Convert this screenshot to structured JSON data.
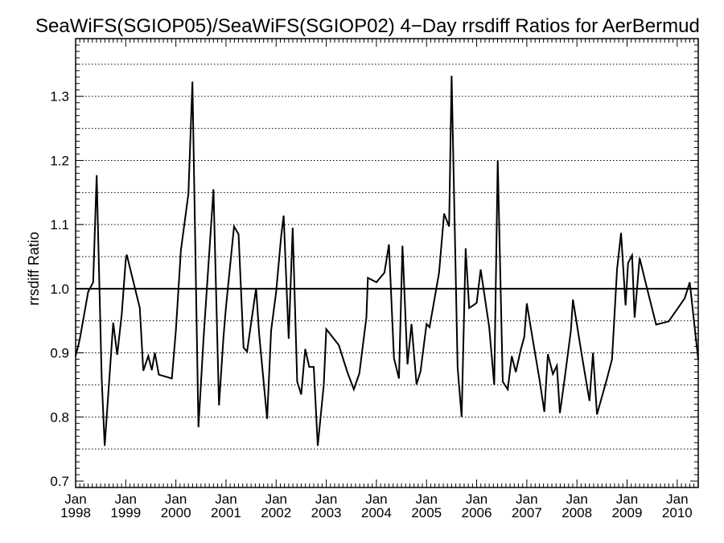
{
  "chart_data": {
    "type": "line",
    "title": "SeaWiFS(SGIOP05)/SeaWiFS(SGIOP02) 4−Day rrsdiff Ratios for AerBermud",
    "xlabel": "",
    "ylabel": "rrsdiff Ratio",
    "xlim": [
      1998.0,
      2010.42
    ],
    "ylim": [
      0.69,
      1.39
    ],
    "grid": true,
    "reference_line": 1.0,
    "x_ticks": [
      {
        "value": 1998,
        "line1": "Jan",
        "line2": "1998"
      },
      {
        "value": 1999,
        "line1": "Jan",
        "line2": "1999"
      },
      {
        "value": 2000,
        "line1": "Jan",
        "line2": "2000"
      },
      {
        "value": 2001,
        "line1": "Jan",
        "line2": "2001"
      },
      {
        "value": 2002,
        "line1": "Jan",
        "line2": "2002"
      },
      {
        "value": 2003,
        "line1": "Jan",
        "line2": "2003"
      },
      {
        "value": 2004,
        "line1": "Jan",
        "line2": "2004"
      },
      {
        "value": 2005,
        "line1": "Jan",
        "line2": "2005"
      },
      {
        "value": 2006,
        "line1": "Jan",
        "line2": "2006"
      },
      {
        "value": 2007,
        "line1": "Jan",
        "line2": "2007"
      },
      {
        "value": 2008,
        "line1": "Jan",
        "line2": "2008"
      },
      {
        "value": 2009,
        "line1": "Jan",
        "line2": "2009"
      },
      {
        "value": 2010,
        "line1": "Jan",
        "line2": "2010"
      }
    ],
    "y_ticks": [
      {
        "value": 0.7,
        "label": "0.7"
      },
      {
        "value": 0.8,
        "label": "0.8"
      },
      {
        "value": 0.9,
        "label": "0.9"
      },
      {
        "value": 1.0,
        "label": "1.0"
      },
      {
        "value": 1.1,
        "label": "1.1"
      },
      {
        "value": 1.2,
        "label": "1.2"
      },
      {
        "value": 1.3,
        "label": "1.3"
      }
    ],
    "gridlines_y": [
      0.75,
      0.8,
      0.85,
      0.9,
      0.95,
      1.0,
      1.05,
      1.1,
      1.15,
      1.2,
      1.25,
      1.3,
      1.35
    ],
    "series": [
      {
        "color": "#000000",
        "points": [
          [
            1998.0,
            0.895
          ],
          [
            1998.08,
            0.92
          ],
          [
            1998.25,
            0.995
          ],
          [
            1998.35,
            1.01
          ],
          [
            1998.42,
            1.177
          ],
          [
            1998.52,
            0.86
          ],
          [
            1998.58,
            0.755
          ],
          [
            1998.75,
            0.947
          ],
          [
            1998.83,
            0.897
          ],
          [
            1998.92,
            0.96
          ],
          [
            1999.0,
            1.045
          ],
          [
            1999.02,
            1.053
          ],
          [
            1999.28,
            0.97
          ],
          [
            1999.35,
            0.872
          ],
          [
            1999.45,
            0.895
          ],
          [
            1999.52,
            0.873
          ],
          [
            1999.58,
            0.9
          ],
          [
            1999.66,
            0.866
          ],
          [
            1999.92,
            0.86
          ],
          [
            2000.0,
            0.935
          ],
          [
            2000.1,
            1.06
          ],
          [
            2000.25,
            1.148
          ],
          [
            2000.33,
            1.323
          ],
          [
            2000.45,
            0.784
          ],
          [
            2000.55,
            0.92
          ],
          [
            2000.75,
            1.155
          ],
          [
            2000.86,
            0.818
          ],
          [
            2000.95,
            0.925
          ],
          [
            2001.0,
            0.972
          ],
          [
            2001.16,
            1.097
          ],
          [
            2001.25,
            1.085
          ],
          [
            2001.35,
            0.908
          ],
          [
            2001.42,
            0.902
          ],
          [
            2001.6,
            1.001
          ],
          [
            2001.66,
            0.93
          ],
          [
            2001.82,
            0.797
          ],
          [
            2001.9,
            0.935
          ],
          [
            2002.0,
            0.995
          ],
          [
            2002.1,
            1.082
          ],
          [
            2002.15,
            1.114
          ],
          [
            2002.25,
            0.922
          ],
          [
            2002.33,
            1.095
          ],
          [
            2002.42,
            0.855
          ],
          [
            2002.5,
            0.835
          ],
          [
            2002.58,
            0.906
          ],
          [
            2002.66,
            0.878
          ],
          [
            2002.75,
            0.878
          ],
          [
            2002.83,
            0.755
          ],
          [
            2002.95,
            0.85
          ],
          [
            2003.0,
            0.937
          ],
          [
            2003.25,
            0.912
          ],
          [
            2003.42,
            0.87
          ],
          [
            2003.55,
            0.843
          ],
          [
            2003.66,
            0.868
          ],
          [
            2003.8,
            0.955
          ],
          [
            2003.83,
            1.017
          ],
          [
            2004.0,
            1.01
          ],
          [
            2004.16,
            1.025
          ],
          [
            2004.25,
            1.069
          ],
          [
            2004.35,
            0.892
          ],
          [
            2004.45,
            0.86
          ],
          [
            2004.52,
            1.067
          ],
          [
            2004.62,
            0.882
          ],
          [
            2004.7,
            0.945
          ],
          [
            2004.8,
            0.851
          ],
          [
            2004.88,
            0.871
          ],
          [
            2005.0,
            0.945
          ],
          [
            2005.06,
            0.94
          ],
          [
            2005.25,
            1.025
          ],
          [
            2005.35,
            1.117
          ],
          [
            2005.45,
            1.097
          ],
          [
            2005.5,
            1.332
          ],
          [
            2005.62,
            0.877
          ],
          [
            2005.7,
            0.8
          ],
          [
            2005.78,
            1.063
          ],
          [
            2005.85,
            0.97
          ],
          [
            2005.95,
            0.975
          ],
          [
            2006.0,
            0.978
          ],
          [
            2006.08,
            1.03
          ],
          [
            2006.25,
            0.94
          ],
          [
            2006.35,
            0.85
          ],
          [
            2006.42,
            1.2
          ],
          [
            2006.52,
            0.855
          ],
          [
            2006.62,
            0.843
          ],
          [
            2006.7,
            0.895
          ],
          [
            2006.78,
            0.87
          ],
          [
            2006.88,
            0.905
          ],
          [
            2006.95,
            0.925
          ],
          [
            2007.0,
            0.977
          ],
          [
            2007.12,
            0.92
          ],
          [
            2007.25,
            0.86
          ],
          [
            2007.35,
            0.808
          ],
          [
            2007.42,
            0.898
          ],
          [
            2007.52,
            0.867
          ],
          [
            2007.6,
            0.88
          ],
          [
            2007.66,
            0.806
          ],
          [
            2007.75,
            0.857
          ],
          [
            2007.88,
            0.935
          ],
          [
            2007.92,
            0.983
          ],
          [
            2008.1,
            0.895
          ],
          [
            2008.25,
            0.825
          ],
          [
            2008.32,
            0.9
          ],
          [
            2008.4,
            0.804
          ],
          [
            2008.6,
            0.86
          ],
          [
            2008.7,
            0.89
          ],
          [
            2008.8,
            1.03
          ],
          [
            2008.88,
            1.087
          ],
          [
            2008.97,
            0.974
          ],
          [
            2009.02,
            1.04
          ],
          [
            2009.1,
            1.052
          ],
          [
            2009.15,
            0.955
          ],
          [
            2009.25,
            1.048
          ],
          [
            2009.4,
            1.0
          ],
          [
            2009.58,
            0.944
          ],
          [
            2009.83,
            0.949
          ],
          [
            2010.15,
            0.985
          ],
          [
            2010.25,
            1.01
          ],
          [
            2010.42,
            0.889
          ]
        ]
      }
    ]
  }
}
